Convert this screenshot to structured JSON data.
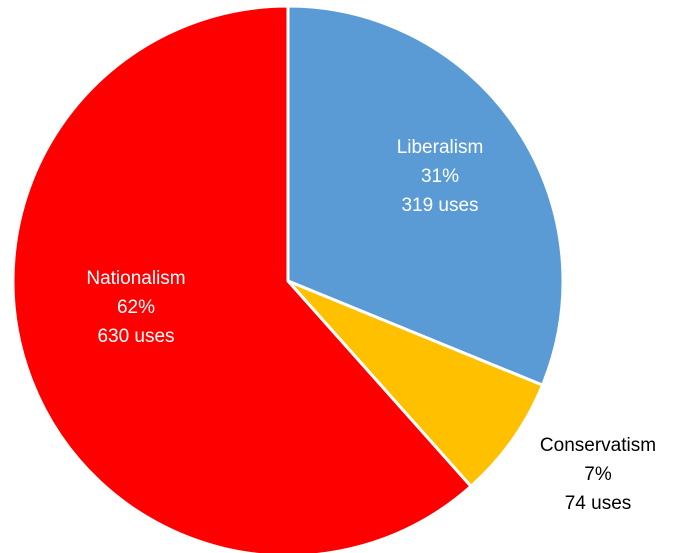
{
  "chart_data": {
    "type": "pie",
    "title": "",
    "unit": "uses",
    "slices": [
      {
        "name": "Liberalism",
        "percent_label": "31%",
        "value": 319,
        "value_label": "319 uses",
        "color": "#5B9BD5",
        "label_color": "#ffffff"
      },
      {
        "name": "Conservatism",
        "percent_label": "7%",
        "value": 74,
        "value_label": "74 uses",
        "color": "#FFC000",
        "label_color": "#000000"
      },
      {
        "name": "Nationalism",
        "percent_label": "62%",
        "value": 630,
        "value_label": "630 uses",
        "color": "#FF0000",
        "label_color": "#ffffff"
      }
    ],
    "start_angle_deg": 0,
    "direction": "clockwise",
    "legend": "none"
  }
}
